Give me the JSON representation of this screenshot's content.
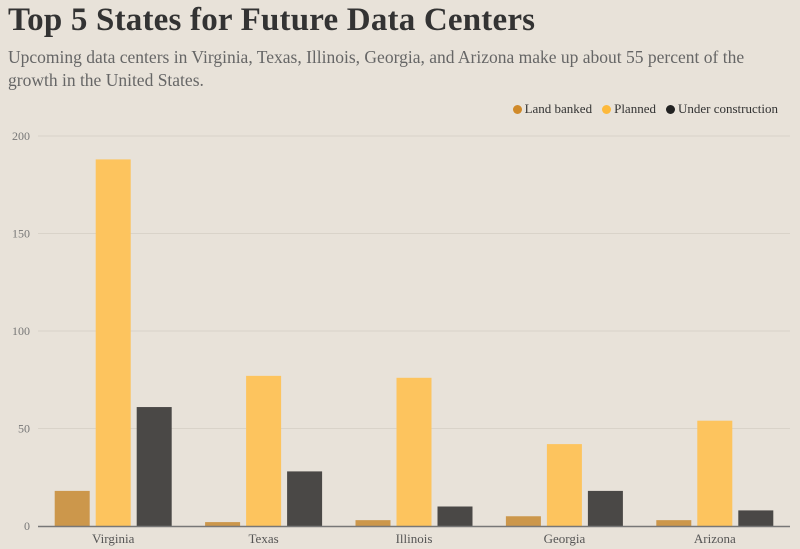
{
  "chart_data": {
    "type": "bar",
    "title": "Top 5 States for Future Data Centers",
    "subtitle": "Upcoming data centers in Virginia, Texas, Illinois, Georgia, and Arizona make up about 55 percent of the growth in the United States.",
    "categories": [
      "Virginia",
      "Texas",
      "Illinois",
      "Georgia",
      "Arizona"
    ],
    "series": [
      {
        "name": "Land banked",
        "color": "#cc974b",
        "legend_color": "#d08a2a",
        "values": [
          18,
          2,
          3,
          5,
          3
        ]
      },
      {
        "name": "Planned",
        "color": "#fdc45e",
        "legend_color": "#fdb93b",
        "values": [
          188,
          77,
          76,
          42,
          54
        ]
      },
      {
        "name": "Under construction",
        "color": "#4a4846",
        "legend_color": "#222222",
        "values": [
          61,
          28,
          10,
          18,
          8
        ]
      }
    ],
    "ylim": [
      0,
      200
    ],
    "yticks": [
      0,
      50,
      100,
      150,
      200
    ],
    "xlabel": "",
    "ylabel": "",
    "grid": true,
    "legend_position": "top-right"
  }
}
